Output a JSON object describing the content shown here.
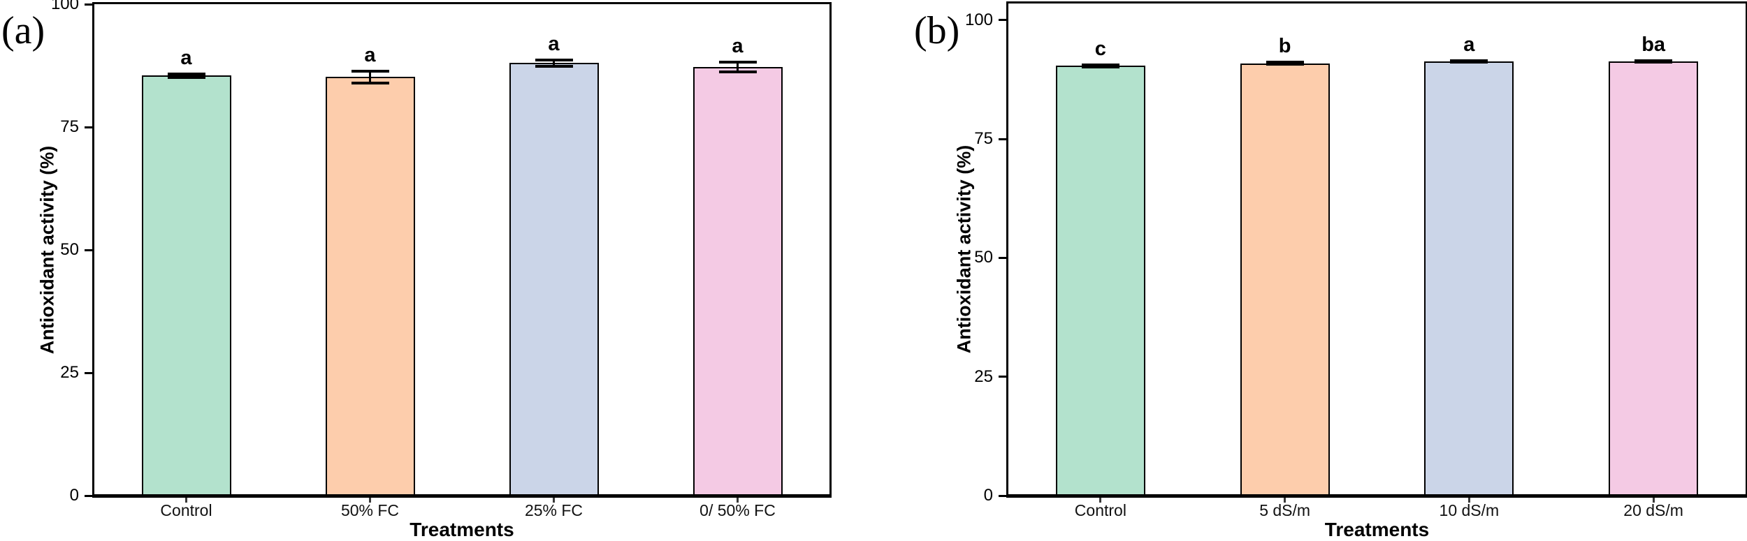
{
  "figure": {
    "background": "#ffffff",
    "text_color": "#000000",
    "axis_color": "#000000"
  },
  "chart_data": [
    {
      "type": "bar",
      "panel_label": "(a)",
      "xlabel": "Treatments",
      "ylabel": "Antioxidant activity (%)",
      "categories": [
        "Control",
        "50% FC",
        "25% FC",
        "0/ 50% FC"
      ],
      "values": [
        85.5,
        85.2,
        88.0,
        87.2
      ],
      "errors": [
        0.35,
        1.2,
        0.7,
        0.95
      ],
      "sig_letters": [
        "a",
        "a",
        "a",
        "a"
      ],
      "bar_colors": [
        "#B3E2CD",
        "#FDCDAC",
        "#CBD5E8",
        "#F4CAE4"
      ],
      "bar_edge_color": "#000000",
      "yticks": [
        0,
        25,
        50,
        75,
        100
      ],
      "ylim": [
        0,
        100
      ],
      "grid": false,
      "legend": "none"
    },
    {
      "type": "bar",
      "panel_label": "(b)",
      "xlabel": "Treatments",
      "ylabel": "Antioxidant activity (%)",
      "categories": [
        "Control",
        "5 dS/m",
        "10 dS/m",
        "20 dS/m"
      ],
      "values": [
        90.4,
        90.9,
        91.3,
        91.3
      ],
      "errors": [
        0.2,
        0.2,
        0.2,
        0.2
      ],
      "sig_letters": [
        "c",
        "b",
        "a",
        "ba"
      ],
      "bar_colors": [
        "#B3E2CD",
        "#FDCDAC",
        "#CBD5E8",
        "#F4CAE4"
      ],
      "bar_edge_color": "#000000",
      "yticks": [
        0,
        25,
        50,
        75,
        100
      ],
      "ylim": [
        0,
        103.5
      ],
      "grid": false,
      "legend": "none"
    }
  ]
}
